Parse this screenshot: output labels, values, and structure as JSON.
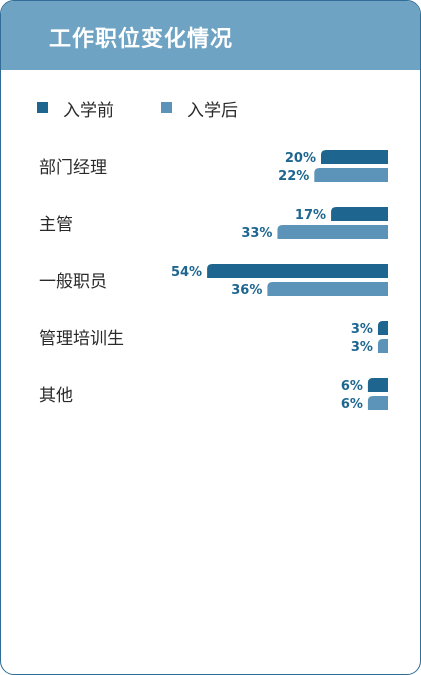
{
  "title": "工作职位变化情况",
  "legend": [
    {
      "label": "入学前",
      "color": "#1e6690"
    },
    {
      "label": "入学后",
      "color": "#5b94b8"
    }
  ],
  "chart_data": {
    "type": "bar",
    "orientation": "horizontal",
    "categories": [
      "部门经理",
      "主管",
      "一般职员",
      "管理培训生",
      "其他"
    ],
    "series": [
      {
        "name": "入学前",
        "values": [
          20,
          17,
          54,
          3,
          6
        ],
        "labels": [
          "20%",
          "17%",
          "54%",
          "3%",
          "6%"
        ],
        "color": "#1e6690"
      },
      {
        "name": "入学后",
        "values": [
          22,
          33,
          36,
          3,
          6
        ],
        "labels": [
          "22%",
          "33%",
          "36%",
          "3%",
          "6%"
        ],
        "color": "#5b94b8"
      }
    ],
    "value_unit": "%",
    "bars_aligned": "right",
    "grid": false,
    "legend_position": "top-left"
  }
}
